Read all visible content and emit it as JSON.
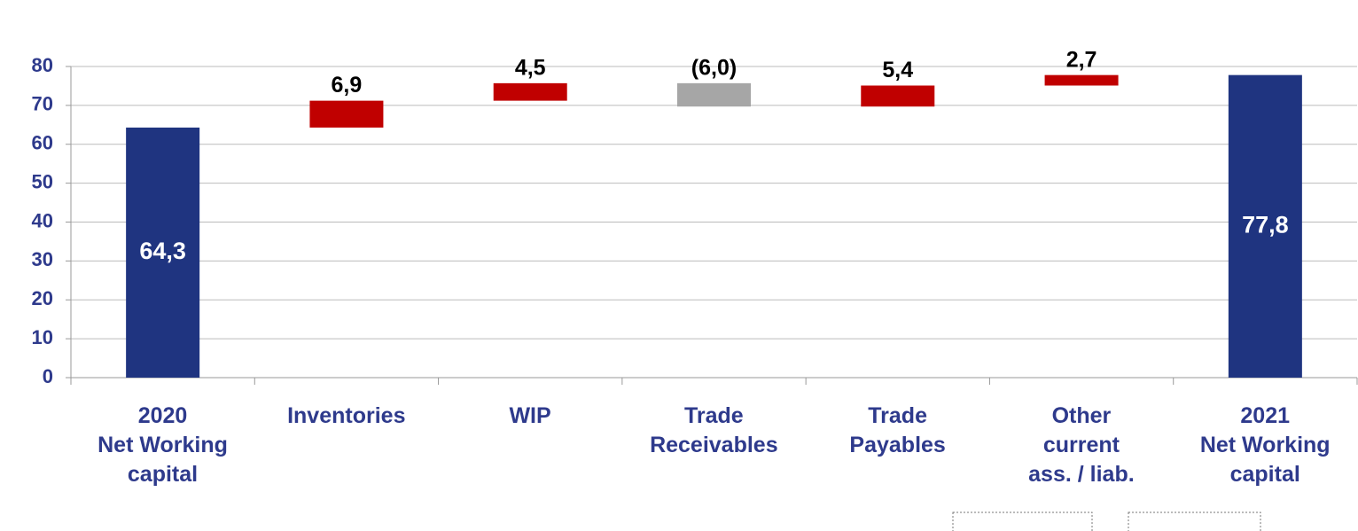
{
  "chart_data": {
    "type": "waterfall",
    "categories": [
      "2020\nNet Working\ncapital",
      "Inventories",
      "WIP",
      "Trade\nReceivables",
      "Trade\nPayables",
      "Other\ncurrent\nass. / liab.",
      "2021\nNet Working\ncapital"
    ],
    "values": [
      64.3,
      6.9,
      4.5,
      -6.0,
      5.4,
      2.7,
      77.8
    ],
    "value_labels": [
      "64,3",
      "6,9",
      "4,5",
      "(6,0)",
      "5,4",
      "2,7",
      "77,8"
    ],
    "totals": [
      true,
      false,
      false,
      false,
      false,
      false,
      true
    ],
    "colors": {
      "total": "#1f3480",
      "increase": "#c00000",
      "decrease": "#a6a6a6"
    },
    "ylim": [
      0,
      80
    ],
    "yticks": [
      0,
      10,
      20,
      30,
      40,
      50,
      60,
      70,
      80
    ],
    "grid": true
  }
}
